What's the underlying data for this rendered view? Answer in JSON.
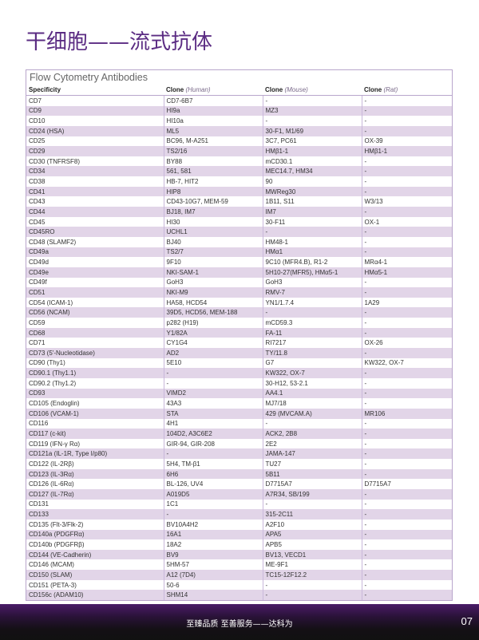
{
  "page_title": "干细胞——流式抗体",
  "table": {
    "title": "Flow Cytometry Antibodies",
    "headers": [
      {
        "bold": "Specificity",
        "italic": ""
      },
      {
        "bold": "Clone",
        "italic": "(Human)"
      },
      {
        "bold": "Clone",
        "italic": "(Mouse)"
      },
      {
        "bold": "Clone",
        "italic": "(Rat)"
      }
    ],
    "rows": [
      [
        "CD7",
        "CD7-6B7",
        "-",
        "-"
      ],
      [
        "CD9",
        "HI9a",
        "MZ3",
        "-"
      ],
      [
        "CD10",
        "HI10a",
        "-",
        "-"
      ],
      [
        "CD24 (HSA)",
        "ML5",
        "30-F1, M1/69",
        "-"
      ],
      [
        "CD25",
        "BC96, M-A251",
        "3C7, PC61",
        "OX-39"
      ],
      [
        "CD29",
        "TS2/16",
        "HMβ1-1",
        "HMβ1-1"
      ],
      [
        "CD30 (TNFRSF8)",
        "BY88",
        "mCD30.1",
        "-"
      ],
      [
        "CD34",
        "561, 581",
        "MEC14.7, HM34",
        "-"
      ],
      [
        "CD38",
        "HB-7, HIT2",
        "90",
        "-"
      ],
      [
        "CD41",
        "HIP8",
        "MWReg30",
        "-"
      ],
      [
        "CD43",
        "CD43-10G7, MEM-59",
        "1B11, S11",
        "W3/13"
      ],
      [
        "CD44",
        "BJ18, IM7",
        "IM7",
        "-"
      ],
      [
        "CD45",
        "HI30",
        "30-F11",
        "OX-1"
      ],
      [
        "CD45RO",
        "UCHL1",
        "-",
        "-"
      ],
      [
        "CD48 (SLAMF2)",
        "BJ40",
        "HM48-1",
        "-"
      ],
      [
        "CD49a",
        "TS2/7",
        "HMα1",
        "-"
      ],
      [
        "CD49d",
        "9F10",
        "9C10 (MFR4.B), R1-2",
        "MRα4-1"
      ],
      [
        "CD49e",
        "NKI-SAM-1",
        "5H10-27(MFR5), HMα5-1",
        "HMα5-1"
      ],
      [
        "CD49f",
        "GoH3",
        "GoH3",
        "-"
      ],
      [
        "CD51",
        "NKI-M9",
        "RMV-7",
        "-"
      ],
      [
        "CD54 (ICAM-1)",
        "HA58, HCD54",
        "YN1/1.7.4",
        "1A29"
      ],
      [
        "CD56 (NCAM)",
        "39D5, HCD56, MEM-188",
        "-",
        "-"
      ],
      [
        "CD59",
        "p282 (H19)",
        "mCD59.3",
        "-"
      ],
      [
        "CD68",
        "Y1/82A",
        "FA-11",
        "-"
      ],
      [
        "CD71",
        "CY1G4",
        "RI7217",
        "OX-26"
      ],
      [
        "CD73 (5'-Nucleotidase)",
        "AD2",
        "TY/11.8",
        "-"
      ],
      [
        "CD90 (Thy1)",
        "5E10",
        "G7",
        "KW322, OX-7"
      ],
      [
        "CD90.1 (Thy1.1)",
        "-",
        "KW322, OX-7",
        "-"
      ],
      [
        "CD90.2 (Thy1.2)",
        "-",
        "30-H12, 53-2.1",
        "-"
      ],
      [
        "CD93",
        "VIMD2",
        "AA4.1",
        "-"
      ],
      [
        "CD105 (Endoglin)",
        "43A3",
        "MJ7/18",
        "-"
      ],
      [
        "CD106 (VCAM-1)",
        "STA",
        "429 (MVCAM.A)",
        "MR106"
      ],
      [
        "CD116",
        "4H1",
        "-",
        "-"
      ],
      [
        "CD117 (c-kit)",
        "104D2, A3C6E2",
        "ACK2, 2B8",
        "-"
      ],
      [
        "CD119 (IFN-γ Rα)",
        "GIR-94, GIR-208",
        "2E2",
        "-"
      ],
      [
        "CD121a (IL-1R, Type I/p80)",
        "-",
        "JAMA-147",
        "-"
      ],
      [
        "CD122 (IL-2Rβ)",
        "5H4, TM-β1",
        "TU27",
        "-"
      ],
      [
        "CD123 (IL-3Rα)",
        "6H6",
        "5B11",
        "-"
      ],
      [
        "CD126 (IL-6Rα)",
        "BL-126, UV4",
        "D7715A7",
        "D7715A7"
      ],
      [
        "CD127 (IL-7Rα)",
        "A019D5",
        "A7R34, SB/199",
        "-"
      ],
      [
        "CD131",
        "1C1",
        "-",
        "-"
      ],
      [
        "CD133",
        "-",
        "315-2C11",
        "-"
      ],
      [
        "CD135 (Flt-3/Flk-2)",
        "BV10A4H2",
        "A2F10",
        "-"
      ],
      [
        "CD140a (PDGFRα)",
        "16A1",
        "APA5",
        "-"
      ],
      [
        "CD140b (PDGFRβ)",
        "18A2",
        "APB5",
        "-"
      ],
      [
        "CD144 (VE-Cadherin)",
        "BV9",
        "BV13, VECD1",
        "-"
      ],
      [
        "CD146 (MCAM)",
        "5HM-57",
        "ME-9F1",
        "-"
      ],
      [
        "CD150 (SLAM)",
        "A12 (7D4)",
        "TC15-12F12.2",
        "-"
      ],
      [
        "CD151 (PETA-3)",
        "50-6",
        "-",
        "-"
      ],
      [
        "CD156c (ADAM10)",
        "SHM14",
        "-",
        "-"
      ]
    ]
  },
  "footer": {
    "slogan": "至臻品质 至善服务——达科为",
    "page_number": "07"
  },
  "colors": {
    "accent": "#5b2c83",
    "row_alt": "#e2d5e8",
    "border": "#b9a6cc"
  }
}
